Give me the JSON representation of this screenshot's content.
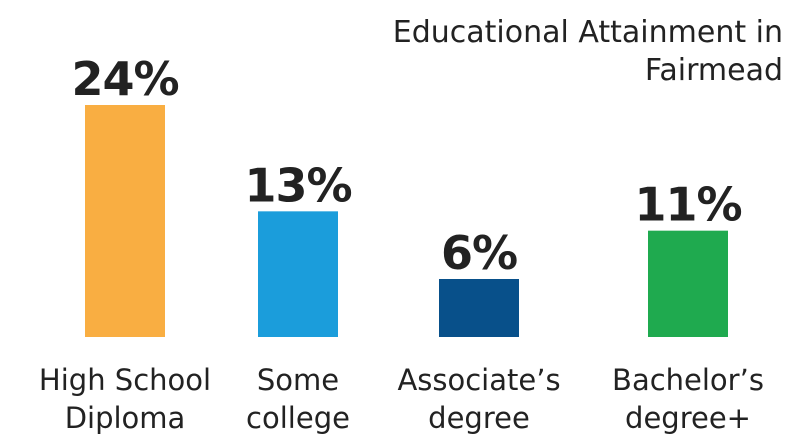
{
  "chart_data": {
    "type": "bar",
    "title": [
      "Educational Attainment in",
      "Fairmead"
    ],
    "categories": [
      [
        "High School",
        "Diploma"
      ],
      [
        "Some",
        "college"
      ],
      [
        "Associate’s",
        "degree"
      ],
      [
        "Bachelor’s",
        "degree+"
      ]
    ],
    "values": [
      24,
      13,
      6,
      11
    ],
    "value_labels": [
      "24%",
      "13%",
      "6%",
      "11%"
    ],
    "colors": [
      "#F9AE42",
      "#1B9DDB",
      "#08508A",
      "#1FAA4F"
    ],
    "ylim": [
      0,
      24
    ],
    "grid": false,
    "legend": "none",
    "xlabel": "",
    "ylabel": ""
  }
}
